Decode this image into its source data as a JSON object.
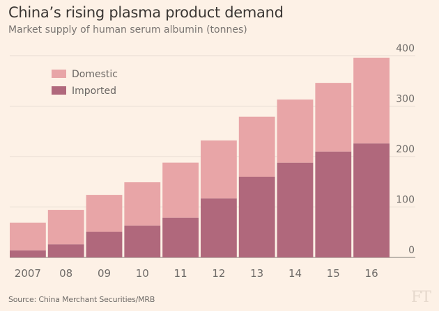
{
  "chart_data": {
    "type": "bar",
    "stacked": true,
    "title": "China’s rising plasma product demand",
    "subtitle": "Market supply of human serum albumin (tonnes)",
    "xlabel": "",
    "ylabel": "",
    "categories": [
      "2007",
      "08",
      "09",
      "10",
      "11",
      "12",
      "13",
      "14",
      "15",
      "16"
    ],
    "series": [
      {
        "name": "Imported",
        "color": "#b0687c",
        "values": [
          14,
          26,
          51,
          63,
          79,
          117,
          160,
          188,
          210,
          226
        ]
      },
      {
        "name": "Domestic",
        "color": "#e8a5a7",
        "values": [
          55,
          68,
          73,
          86,
          109,
          115,
          119,
          125,
          136,
          170
        ]
      }
    ],
    "totals": [
      69,
      94,
      124,
      149,
      188,
      232,
      279,
      313,
      346,
      396
    ],
    "ylim": [
      0,
      400
    ],
    "yticks": [
      0,
      100,
      200,
      300,
      400
    ],
    "ytick_labels": [
      "0",
      "100",
      "200",
      "300",
      "400"
    ],
    "y_axis_side": "right",
    "grid": true,
    "legend": {
      "placement": "top-left",
      "entries": [
        {
          "label": "Domestic",
          "color": "#e8a5a7"
        },
        {
          "label": "Imported",
          "color": "#b0687c"
        }
      ]
    }
  },
  "source": "Source: China Merchant Securities/MRB",
  "logo": "FT"
}
